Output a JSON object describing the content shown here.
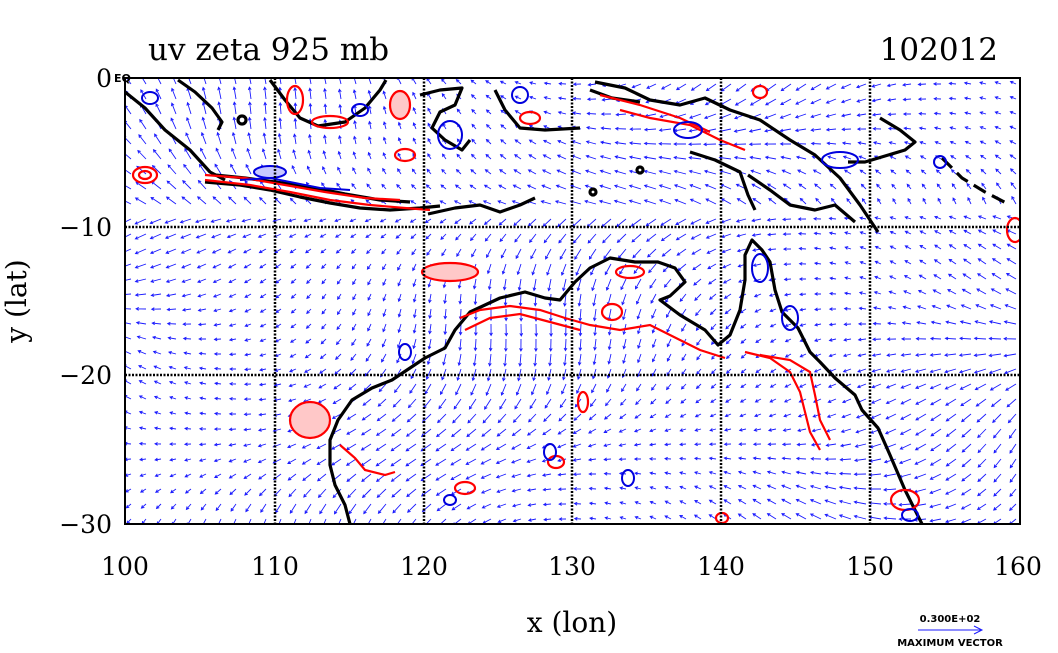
{
  "title": "uv zeta 925 mb",
  "timestamp": "102012",
  "xlabel": "x (lon)",
  "ylabel": "y (lat)",
  "corner_label": "EQ",
  "x_ticks": [
    "100",
    "110",
    "120",
    "130",
    "140",
    "150",
    "160"
  ],
  "y_ticks": [
    "0",
    "−10",
    "−20",
    "−30"
  ],
  "legend": {
    "value": "0.300E+02",
    "label": "MAXIMUM VECTOR"
  },
  "chart_data": {
    "type": "map",
    "title": "uv zeta 925 mb",
    "xlabel": "x (lon)",
    "ylabel": "y (lat)",
    "xlim": [
      100,
      160
    ],
    "ylim": [
      -30,
      0
    ],
    "x_tick_values": [
      100,
      110,
      120,
      130,
      140,
      150,
      160
    ],
    "y_tick_values": [
      0,
      -10,
      -20,
      -30
    ],
    "grid": true,
    "colors": {
      "vectors": "#1a1aff",
      "positive_vorticity": "#ff0000",
      "negative_vorticity": "#0000dd",
      "positive_fill": "#ffc8c8",
      "coastline": "#000000"
    }
  }
}
